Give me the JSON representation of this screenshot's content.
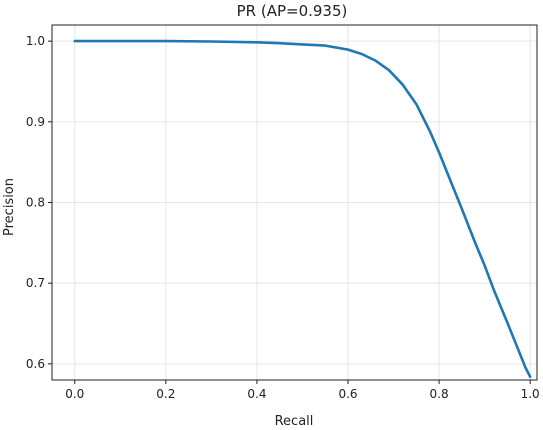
{
  "chart_data": {
    "type": "line",
    "title": "PR (AP=0.935)",
    "xlabel": "Recall",
    "ylabel": "Precision",
    "xlim": [
      -0.05,
      1.015
    ],
    "ylim": [
      0.58,
      1.02
    ],
    "xticks": [
      0.0,
      0.2,
      0.4,
      0.6,
      0.8,
      1.0
    ],
    "xtick_labels": [
      "0.0",
      "0.2",
      "0.4",
      "0.6",
      "0.8",
      "1.0"
    ],
    "yticks": [
      0.6,
      0.7,
      0.8,
      0.9,
      1.0
    ],
    "ytick_labels": [
      "0.6",
      "0.7",
      "0.8",
      "0.9",
      "1.0"
    ],
    "grid": true,
    "series": [
      {
        "color": "#1f77b4",
        "x": [
          0.0,
          0.1,
          0.2,
          0.3,
          0.4,
          0.45,
          0.5,
          0.55,
          0.6,
          0.63,
          0.66,
          0.69,
          0.72,
          0.75,
          0.78,
          0.8,
          0.82,
          0.85,
          0.88,
          0.9,
          0.92,
          0.95,
          0.97,
          0.99,
          1.0
        ],
        "y": [
          1.0,
          1.0,
          1.0,
          0.9995,
          0.9985,
          0.9975,
          0.996,
          0.9945,
          0.9895,
          0.984,
          0.976,
          0.964,
          0.946,
          0.922,
          0.888,
          0.862,
          0.834,
          0.792,
          0.749,
          0.722,
          0.692,
          0.651,
          0.623,
          0.595,
          0.584
        ]
      }
    ]
  }
}
